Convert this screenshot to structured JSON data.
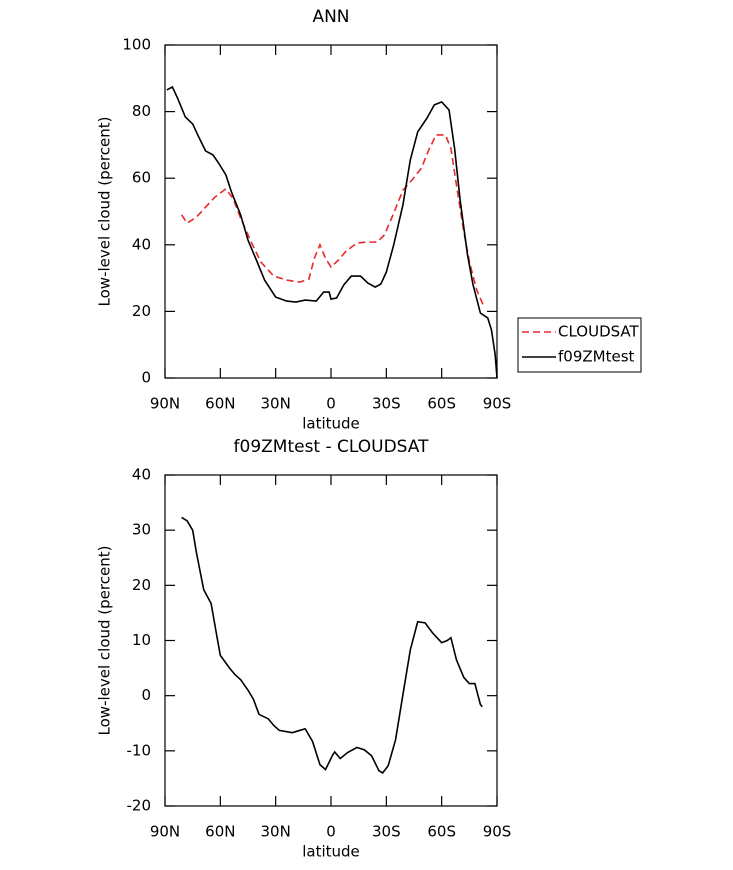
{
  "chart_data": [
    {
      "type": "line",
      "title": "ANN",
      "xlabel": "latitude",
      "ylabel": "Low-level cloud (percent)",
      "xlim": [
        90,
        -90
      ],
      "xticks": [
        {
          "value": 90,
          "label": "90N"
        },
        {
          "value": 60,
          "label": "60N"
        },
        {
          "value": 30,
          "label": "30N"
        },
        0,
        {
          "value": -30,
          "label": "30S"
        },
        {
          "value": -60,
          "label": "60S"
        },
        {
          "value": -90,
          "label": "90S"
        }
      ],
      "ylim": [
        0,
        100
      ],
      "yticks": [
        0,
        20,
        40,
        60,
        80,
        100
      ],
      "legend": "right",
      "series": [
        {
          "name": "CLOUDSAT",
          "color": "#e8292b",
          "linestyle": "dashed",
          "x": [
            81,
            78,
            73,
            68,
            63,
            57,
            53,
            49,
            43,
            38,
            31,
            24,
            17,
            12,
            9,
            6,
            3,
            0,
            -4,
            -8,
            -14,
            -19,
            -25,
            -29,
            -34,
            -39,
            -44,
            -49,
            -53,
            -57,
            -62,
            -65,
            -68,
            -72,
            -75,
            -79,
            -83
          ],
          "values": [
            49,
            46.5,
            48.3,
            51.3,
            54.3,
            56.8,
            53.8,
            48,
            40.5,
            34.8,
            30.6,
            29.4,
            28.8,
            29.7,
            36,
            40,
            36,
            33.3,
            35.4,
            38,
            40.5,
            40.8,
            40.8,
            43,
            49.5,
            56.4,
            59.5,
            63,
            68.5,
            73,
            73,
            69,
            58,
            44,
            35,
            26.4,
            21.3
          ]
        },
        {
          "name": "f09ZMtest",
          "color": "#000000",
          "linestyle": "solid",
          "x": [
            89,
            86,
            83,
            79,
            75,
            72,
            68,
            64,
            61,
            57,
            54,
            49,
            45,
            40,
            36,
            30,
            24,
            19,
            14,
            8,
            4,
            1,
            0,
            -3,
            -7,
            -11,
            -16,
            -20,
            -24,
            -27,
            -30,
            -34,
            -39,
            -43,
            -47,
            -52,
            -56,
            -60,
            -64,
            -67,
            -70,
            -74,
            -77,
            -81,
            -85,
            -87,
            -89,
            -90
          ],
          "values": [
            86.5,
            87.4,
            83.8,
            78.4,
            76.3,
            72.7,
            68.2,
            67,
            64.6,
            61,
            55.9,
            49,
            41.4,
            34.8,
            29.4,
            24.3,
            23.1,
            22.8,
            23.4,
            23.1,
            25.8,
            25.8,
            23.7,
            24,
            28,
            30.6,
            30.6,
            28.5,
            27.3,
            28.2,
            31.8,
            40,
            52,
            65.5,
            73.9,
            78,
            82,
            82.9,
            80.5,
            69,
            53.5,
            37,
            28,
            19.5,
            18,
            14.4,
            7,
            0
          ]
        }
      ]
    },
    {
      "type": "line",
      "title": "f09ZMtest - CLOUDSAT",
      "xlabel": "latitude",
      "ylabel": "Low-level cloud (percent)",
      "xlim": [
        90,
        -90
      ],
      "xticks": [
        {
          "value": 90,
          "label": "90N"
        },
        {
          "value": 60,
          "label": "60N"
        },
        {
          "value": 30,
          "label": "30N"
        },
        0,
        {
          "value": -30,
          "label": "30S"
        },
        {
          "value": -60,
          "label": "60S"
        },
        {
          "value": -90,
          "label": "90S"
        }
      ],
      "ylim": [
        -20,
        40
      ],
      "yticks": [
        -20,
        -10,
        0,
        10,
        20,
        30,
        40
      ],
      "series": [
        {
          "color": "#000000",
          "linestyle": "solid",
          "x": [
            81,
            78,
            75,
            73,
            69,
            65,
            62,
            60,
            55,
            52,
            49,
            45,
            42,
            39,
            34,
            31,
            28,
            21,
            17,
            14,
            10,
            6,
            3,
            -1,
            -2,
            -5,
            -9,
            -14,
            -18,
            -22,
            -26,
            -28,
            -31,
            -35,
            -39,
            -43,
            -47,
            -51,
            -55,
            -60,
            -63,
            -65,
            -68,
            -72,
            -75,
            -78,
            -81,
            -82
          ],
          "values": [
            32.3,
            31.7,
            30,
            26,
            19.2,
            16.7,
            11,
            7.3,
            5,
            3.8,
            2.9,
            1,
            -0.7,
            -3.4,
            -4.2,
            -5.4,
            -6.3,
            -6.7,
            -6.3,
            -6,
            -8.3,
            -12.5,
            -13.4,
            -10.7,
            -10.2,
            -11.4,
            -10.3,
            -9.4,
            -9.8,
            -10.9,
            -13.6,
            -14,
            -12.7,
            -8,
            0.2,
            8.3,
            13.4,
            13.2,
            11.4,
            9.6,
            10,
            10.5,
            6.5,
            3.3,
            2.2,
            2.2,
            -1.6,
            -2
          ]
        }
      ]
    }
  ]
}
